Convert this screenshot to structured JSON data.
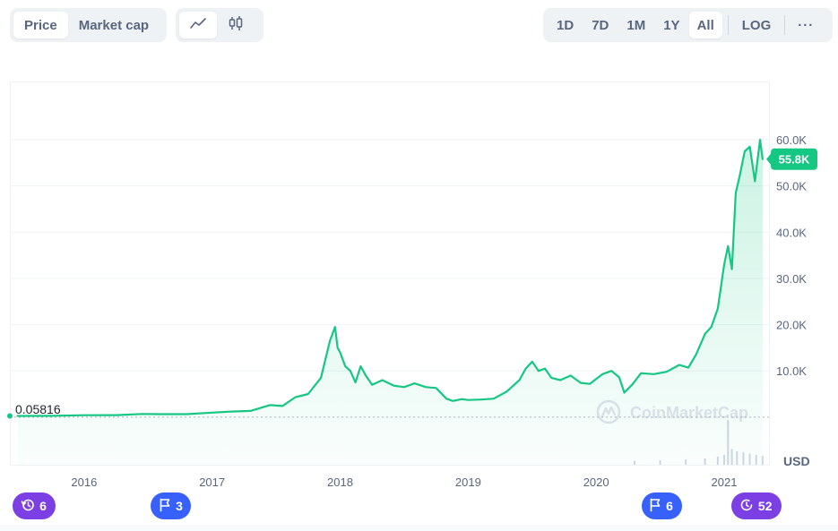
{
  "toolbar": {
    "metric_tabs": [
      {
        "label": "Price",
        "active": true
      },
      {
        "label": "Market cap",
        "active": false
      }
    ],
    "chart_type_icons": [
      {
        "icon": "line-chart-icon",
        "active": true
      },
      {
        "icon": "candlestick-icon",
        "active": false
      }
    ],
    "ranges": [
      {
        "label": "1D",
        "active": false
      },
      {
        "label": "7D",
        "active": false
      },
      {
        "label": "1M",
        "active": false
      },
      {
        "label": "1Y",
        "active": false
      },
      {
        "label": "All",
        "active": true
      }
    ],
    "log_label": "LOG",
    "more_label": "···"
  },
  "colors": {
    "line": "#16c784",
    "current_price_bg": "#16c784",
    "event_purple": "#7b3fe4",
    "event_blue": "#3861fb",
    "grid": "#eff2f5",
    "axis_text": "#58667e"
  },
  "watermark": "CoinMarketCap",
  "currency_label": "USD",
  "start_price_label": "0.05816",
  "current_price_label": "55.8K",
  "events": [
    {
      "icon": "history-icon",
      "count": "6",
      "color": "#7b3fe4",
      "x_year": 2015.6
    },
    {
      "icon": "flag-icon",
      "count": "3",
      "color": "#3861fb",
      "x_year": 2016.68
    },
    {
      "icon": "flag-icon",
      "count": "6",
      "color": "#3861fb",
      "x_year": 2020.51
    },
    {
      "icon": "clock-icon",
      "count": "52",
      "color": "#7b3fe4",
      "x_year": 2021.25
    }
  ],
  "chart_data": {
    "type": "area",
    "title": "",
    "xlabel": "",
    "ylabel": "USD",
    "x_ticks": [
      "2016",
      "2017",
      "2018",
      "2019",
      "2020",
      "2021"
    ],
    "y_ticks": [
      "10.0K",
      "20.0K",
      "30.0K",
      "40.0K",
      "50.0K",
      "60.0K"
    ],
    "xlim": [
      2015.42,
      2021.35
    ],
    "ylim": [
      -10300,
      72600
    ],
    "grid": true,
    "series": [
      {
        "x": [
          2015.48,
          2015.75,
          2016.0,
          2016.25,
          2016.45,
          2016.6,
          2016.8,
          2017.0,
          2017.15,
          2017.3,
          2017.45,
          2017.55,
          2017.65,
          2017.75,
          2017.85,
          2017.92,
          2017.96,
          2017.98,
          2018.0,
          2018.04,
          2018.08,
          2018.12,
          2018.16,
          2018.2,
          2018.25,
          2018.33,
          2018.42,
          2018.5,
          2018.58,
          2018.67,
          2018.75,
          2018.83,
          2018.88,
          2018.95,
          2019.0,
          2019.1,
          2019.2,
          2019.3,
          2019.4,
          2019.45,
          2019.5,
          2019.55,
          2019.6,
          2019.65,
          2019.72,
          2019.8,
          2019.88,
          2019.95,
          2020.05,
          2020.12,
          2020.18,
          2020.22,
          2020.28,
          2020.35,
          2020.45,
          2020.55,
          2020.65,
          2020.72,
          2020.78,
          2020.85,
          2020.9,
          2020.95,
          2021.0,
          2021.03,
          2021.06,
          2021.09,
          2021.12,
          2021.16,
          2021.2,
          2021.24,
          2021.28,
          2021.3
        ],
        "y": [
          250,
          280,
          420,
          430,
          680,
          650,
          640,
          970,
          1200,
          1350,
          2600,
          2400,
          4300,
          5000,
          8500,
          16500,
          19500,
          15000,
          14000,
          11000,
          10000,
          7500,
          11000,
          9000,
          7000,
          8000,
          6800,
          6500,
          7300,
          6500,
          6300,
          4000,
          3500,
          3900,
          3700,
          3800,
          4000,
          5500,
          8000,
          10500,
          12000,
          10000,
          10500,
          8500,
          8000,
          9000,
          7400,
          7200,
          9300,
          10000,
          8600,
          5300,
          7000,
          9500,
          9300,
          9800,
          11300,
          10700,
          13500,
          18000,
          19500,
          23500,
          33000,
          37000,
          32000,
          48500,
          52000,
          57500,
          58500,
          51000,
          60000,
          55800
        ],
        "color": "#16c784"
      }
    ],
    "volume": {
      "x": [
        2020.3,
        2020.5,
        2020.7,
        2020.85,
        2020.95,
        2021.0,
        2021.03,
        2021.06,
        2021.1,
        2021.15,
        2021.2,
        2021.25,
        2021.3
      ],
      "values": [
        0.08,
        0.1,
        0.12,
        0.14,
        0.18,
        0.22,
        1.0,
        0.35,
        0.3,
        0.28,
        0.25,
        0.22,
        0.2
      ]
    },
    "current_value": 55800
  }
}
